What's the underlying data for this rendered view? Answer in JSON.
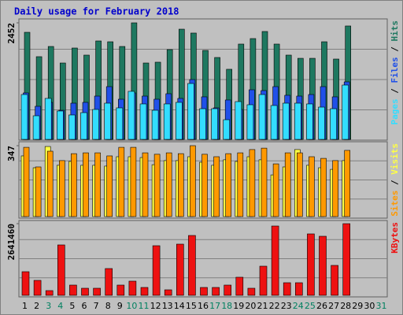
{
  "chart_data": {
    "type": "bar",
    "title": "Daily usage for February 2018",
    "title_color": "#0000cc",
    "legend_separator": " / ",
    "categories": [
      "1",
      "2",
      "3",
      "4",
      "5",
      "6",
      "7",
      "8",
      "9",
      "10",
      "11",
      "12",
      "13",
      "14",
      "15",
      "16",
      "17",
      "18",
      "19",
      "20",
      "21",
      "22",
      "23",
      "24",
      "25",
      "26",
      "27",
      "28",
      "29",
      "30",
      "31"
    ],
    "category_colors": [
      "#000000",
      "#000000",
      "#008060",
      "#008060",
      "#000000",
      "#000000",
      "#000000",
      "#000000",
      "#000000",
      "#008060",
      "#008060",
      "#000000",
      "#000000",
      "#000000",
      "#000000",
      "#000000",
      "#008060",
      "#008060",
      "#000000",
      "#000000",
      "#000000",
      "#000000",
      "#000000",
      "#008060",
      "#008060",
      "#000000",
      "#000000",
      "#000000",
      "#000000",
      "#000000",
      "#008060"
    ],
    "grid": true,
    "panels": [
      {
        "ylim": [
          0,
          2452
        ],
        "yticks": [
          2452
        ],
        "series": [
          {
            "name": "Pages",
            "color": "#33ddff",
            "values": [
              944,
              497,
              862,
              597,
              514,
              563,
              630,
              762,
              663,
              1011,
              746,
              613,
              746,
              779,
              1176,
              646,
              646,
              414,
              795,
              729,
              944,
              713,
              762,
              762,
              746,
              679,
              646,
              1143,
              null,
              null,
              null
            ]
          },
          {
            "name": "Files",
            "color": "#2050e8",
            "values": [
              978,
              696,
              779,
              613,
              762,
              779,
              911,
              1110,
              845,
              978,
              911,
              845,
              961,
              862,
              1259,
              895,
              663,
              829,
              630,
              1044,
              1027,
              1110,
              928,
              911,
              944,
              1110,
              895,
              1210,
              null,
              null,
              null
            ]
          },
          {
            "name": "Hits",
            "color": "#1e7860",
            "values": [
              2253,
              1740,
              1955,
              1607,
              1922,
              1773,
              2071,
              2054,
              1955,
              2452,
              1607,
              1624,
              1889,
              2319,
              2237,
              1872,
              1723,
              1475,
              2005,
              2121,
              2270,
              2005,
              1773,
              1706,
              1706,
              2054,
              1690,
              2386,
              null,
              null,
              null
            ]
          }
        ]
      },
      {
        "ylim": [
          0,
          347
        ],
        "yticks": [
          347
        ],
        "series": [
          {
            "name": "Sites",
            "color": "#ff9900",
            "values": [
              339,
              243,
              320,
              274,
              308,
              312,
              312,
              297,
              339,
              339,
              312,
              305,
              312,
              308,
              347,
              305,
              293,
              308,
              312,
              328,
              335,
              258,
              312,
              312,
              293,
              285,
              274,
              324,
              null,
              null,
              null
            ]
          },
          {
            "name": "Visits",
            "color": "#ffff44",
            "values": [
              297,
              239,
              343,
              251,
              270,
              251,
              251,
              247,
              293,
              293,
              289,
              254,
              274,
              274,
              293,
              266,
              251,
              278,
              270,
              293,
              278,
              204,
              243,
              328,
              251,
              239,
              231,
              274,
              null,
              null,
              null
            ]
          }
        ]
      },
      {
        "ylim": [
          0,
          2641460
        ],
        "yticks": [
          2641460
        ],
        "series": [
          {
            "name": "KBytes",
            "color": "#ee1111",
            "values": [
              870810,
              551513,
              174162,
              1857728,
              377351,
              261243,
              261243,
              986918,
              377351,
              522486,
              290270,
              1828701,
              203189,
              1886755,
              2206052,
              290270,
              290270,
              377351,
              667621,
              261243,
              1073999,
              2554376,
              464432,
              464432,
              2264106,
              2177025,
              1103026,
              2641460,
              null,
              null,
              null
            ]
          }
        ]
      }
    ]
  }
}
